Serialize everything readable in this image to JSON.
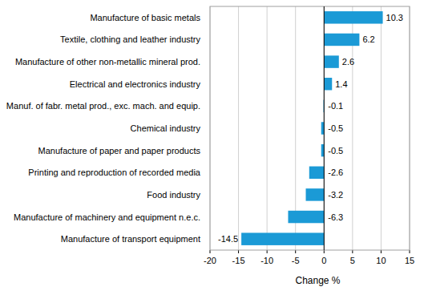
{
  "chart_data": {
    "type": "bar",
    "orientation": "horizontal",
    "categories": [
      "Manufacture of basic metals",
      "Textile, clothing and leather industry",
      "Manufacture of other non-metallic mineral prod.",
      "Electrical and electronics industry",
      "Manuf. of fabr. metal prod., exc. mach. and equip.",
      "Chemical industry",
      "Manufacture of paper and paper products",
      "Printing and reproduction of recorded media",
      "Food industry",
      "Manufacture of machinery and equipment n.e.c.",
      "Manufacture of transport equipment"
    ],
    "values": [
      10.3,
      6.2,
      2.6,
      1.4,
      -0.1,
      -0.5,
      -0.5,
      -2.6,
      -3.2,
      -6.3,
      -14.5
    ],
    "color": "#1b9ad6",
    "x_label": "Change %",
    "xlim": [
      -20,
      15
    ],
    "xticks": [
      -20,
      -15,
      -10,
      -5,
      0,
      5,
      10,
      15
    ],
    "grid": true,
    "data_labels": true
  }
}
